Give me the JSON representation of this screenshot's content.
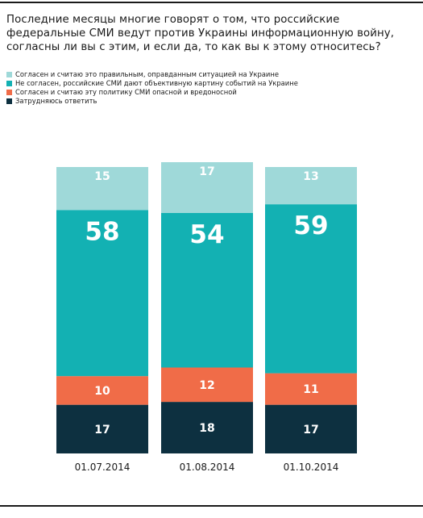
{
  "title": "Последние месяцы многие говорят о том, что российские федеральные СМИ ведут против Украины информационную войну, согласны ли вы с этим, и если да, то как вы к этому относитесь?",
  "colors": {
    "agree_justified": "#9fd9d9",
    "disagree": "#13b1b3",
    "agree_dangerous": "#f06c48",
    "hard_to_say": "#0d3040"
  },
  "chart_data": {
    "type": "bar",
    "stacked": true,
    "title": "Последние месяцы многие говорят о том, что российские федеральные СМИ ведут против Украины информационную войну, согласны ли вы с этим, и если да, то как вы к этому относитесь?",
    "categories": [
      "01.07.2014",
      "01.08.2014",
      "01.10.2014"
    ],
    "series": [
      {
        "name": "Затрудняюсь ответить",
        "color_key": "hard_to_say",
        "values": [
          17,
          18,
          17
        ]
      },
      {
        "name": "Согласен и считаю эту политику СМИ опасной и вредоносной",
        "color_key": "agree_dangerous",
        "values": [
          10,
          12,
          11
        ]
      },
      {
        "name": "Не согласен, российские СМИ дают объективную картину событий на Украине",
        "color_key": "disagree",
        "values": [
          58,
          54,
          59
        ]
      },
      {
        "name": "Согласен и считаю это правильным, оправданным ситуацией на Украине",
        "color_key": "agree_justified",
        "values": [
          15,
          17,
          13
        ]
      }
    ],
    "legend_order": [
      3,
      2,
      1,
      0
    ],
    "legend_position": "top-left",
    "grid": false,
    "data_labels": true
  }
}
